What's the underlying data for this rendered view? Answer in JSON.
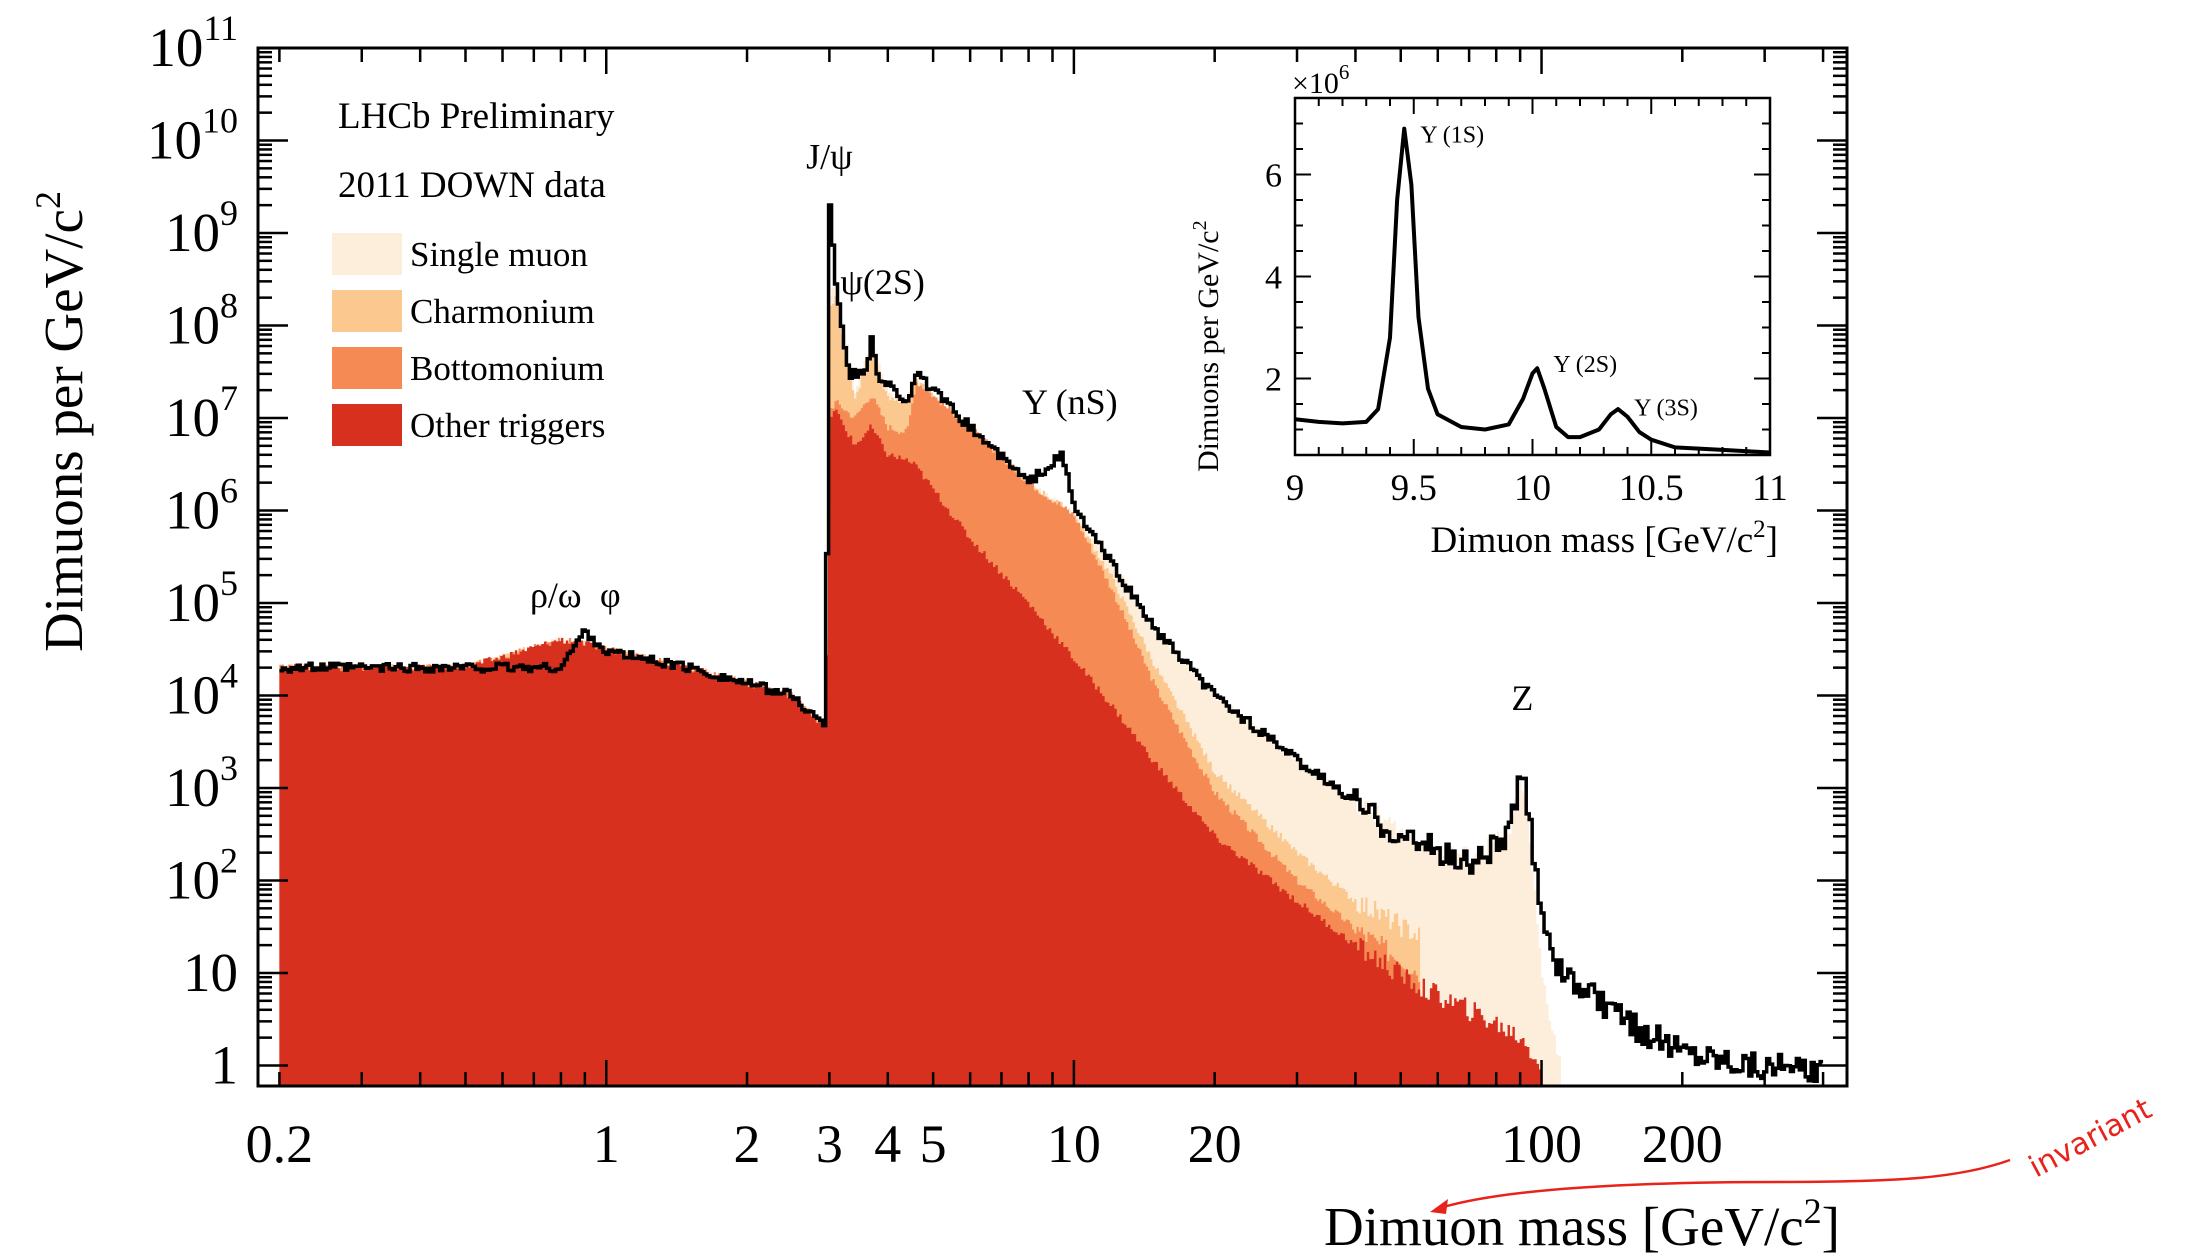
{
  "chart_data": [
    {
      "type": "area",
      "role": "main",
      "xscale": "log",
      "yscale": "log",
      "xlim": [
        0.18,
        450
      ],
      "ylim": [
        0.6,
        100000000000.0
      ],
      "xlabel": "Dimuon mass [GeV/c",
      "xlabel_sup": "2",
      "xlabel_tail": "]",
      "ylabel": "Dimuons per GeV/c",
      "ylabel_sup": "2",
      "xticks": [
        {
          "value": 0.2,
          "label": "0.2"
        },
        {
          "value": 1,
          "label": "1"
        },
        {
          "value": 2,
          "label": "2"
        },
        {
          "value": 3,
          "label": "3"
        },
        {
          "value": 4,
          "label": "4"
        },
        {
          "value": 5,
          "label": "5"
        },
        {
          "value": 10,
          "label": "10"
        },
        {
          "value": 20,
          "label": "20"
        },
        {
          "value": 100,
          "label": "100"
        },
        {
          "value": 200,
          "label": "200"
        }
      ],
      "yticks": [
        {
          "value": 1,
          "base": "1",
          "exp": ""
        },
        {
          "value": 10,
          "base": "10",
          "exp": ""
        },
        {
          "value": 100,
          "base": "10",
          "exp": "2"
        },
        {
          "value": 1000,
          "base": "10",
          "exp": "3"
        },
        {
          "value": 10000,
          "base": "10",
          "exp": "4"
        },
        {
          "value": 100000,
          "base": "10",
          "exp": "5"
        },
        {
          "value": 1000000,
          "base": "10",
          "exp": "6"
        },
        {
          "value": 10000000,
          "base": "10",
          "exp": "7"
        },
        {
          "value": 100000000,
          "base": "10",
          "exp": "8"
        },
        {
          "value": 1000000000,
          "base": "10",
          "exp": "9"
        },
        {
          "value": 10000000000,
          "base": "10",
          "exp": "10"
        },
        {
          "value": 100000000000,
          "base": "10",
          "exp": "11"
        }
      ],
      "text_lines": [
        "LHCb Preliminary",
        "2011 DOWN data"
      ],
      "legend": {
        "placement": "top-left",
        "entries": [
          {
            "name": "Single muon",
            "color": "#fdeedc"
          },
          {
            "name": "Charmonium",
            "color": "#fbc88f"
          },
          {
            "name": "Bottomonium",
            "color": "#f58a55"
          },
          {
            "name": "Other triggers",
            "color": "#d8301f"
          }
        ]
      },
      "annotations": [
        {
          "text": "ρ/ω",
          "x": 0.78,
          "y": 90000
        },
        {
          "text": "φ",
          "x": 1.02,
          "y": 90000
        },
        {
          "text": "J/ψ",
          "x": 3.0,
          "y": 5000000000.0
        },
        {
          "text": "ψ(2S)",
          "x": 3.9,
          "y": 220000000.0
        },
        {
          "text": "Υ (nS)",
          "x": 9.8,
          "y": 11000000.0
        },
        {
          "text": "Z",
          "x": 91,
          "y": 7000
        }
      ],
      "series": [
        {
          "name": "Single muon",
          "color": "#fdeedc",
          "x": [
            0.2,
            0.5,
            0.8,
            1.0,
            1.5,
            2.5,
            2.95,
            3.0,
            3.1,
            3.4,
            3.69,
            4.0,
            4.4,
            4.6,
            6,
            8,
            9.46,
            10,
            12,
            15,
            20,
            30,
            40,
            55,
            70,
            85,
            91,
            95,
            100,
            110
          ],
          "values": [
            20000,
            20000,
            40000,
            32000,
            20000,
            10000,
            4500,
            200000000.0,
            300000000.0,
            20000000.0,
            70000000.0,
            18000000.0,
            16000000.0,
            25000000.0,
            8000000.0,
            2000000.0,
            1100000.0,
            900000.0,
            300000.0,
            50000.0,
            10000.0,
            2000,
            700,
            250,
            180,
            300,
            1200,
            200,
            10,
            1
          ]
        },
        {
          "name": "Charmonium",
          "color": "#fbc88f",
          "x": [
            0.2,
            0.5,
            0.8,
            1.0,
            1.5,
            2.5,
            2.95,
            3.0,
            3.1,
            3.4,
            3.69,
            4.0,
            4.4,
            4.6,
            6,
            8,
            9.46,
            10,
            12,
            15,
            20,
            30,
            40,
            55
          ],
          "values": [
            20000,
            20000,
            40000,
            32000,
            20000,
            10000,
            4500,
            150000000.0,
            200000000.0,
            15000000.0,
            60000000.0,
            16000000.0,
            15000000.0,
            25000000.0,
            8000000.0,
            2000000.0,
            1100000.0,
            900000.0,
            200000.0,
            20000.0,
            1500,
            200,
            60,
            25
          ]
        },
        {
          "name": "Bottomonium",
          "color": "#f58a55",
          "x": [
            0.2,
            0.5,
            0.8,
            1.0,
            1.5,
            2.5,
            2.95,
            3.0,
            3.1,
            3.4,
            3.69,
            4.0,
            4.4,
            4.6,
            6,
            8,
            9.46,
            10,
            12,
            15,
            20,
            30,
            40,
            55
          ],
          "values": [
            20000,
            20000,
            40000,
            32000,
            20000,
            10000,
            4500,
            12000000.0,
            15000000.0,
            10000000.0,
            18000000.0,
            8000000.0,
            7000000.0,
            25000000.0,
            8000000.0,
            2000000.0,
            1100000.0,
            900000.0,
            150000.0,
            12000.0,
            900,
            100,
            30,
            10
          ]
        },
        {
          "name": "Other triggers",
          "color": "#d8301f",
          "x": [
            0.2,
            0.5,
            0.8,
            1.0,
            1.5,
            2.5,
            2.95,
            3.0,
            3.1,
            3.4,
            3.69,
            4.0,
            4.4,
            4.6,
            6,
            8,
            10,
            12,
            15,
            20,
            30,
            40,
            55,
            70,
            91,
            100
          ],
          "values": [
            20000,
            20000,
            40000,
            32000,
            20000,
            10000,
            4500,
            10000000.0,
            12000000.0,
            5000000.0,
            8000000.0,
            4000000.0,
            3500000.0,
            3000000.0,
            500000.0,
            100000.0,
            25000.0,
            8000,
            1800,
            300,
            60,
            20,
            7,
            4,
            2,
            1
          ]
        },
        {
          "name": "Total",
          "color": "#000000",
          "x": [
            0.2,
            0.5,
            0.8,
            0.9,
            1.0,
            1.5,
            2.5,
            2.95,
            3.0,
            3.1,
            3.3,
            3.6,
            3.69,
            3.8,
            4.4,
            4.6,
            6,
            8,
            9.46,
            10,
            15,
            20,
            30,
            40,
            50,
            70,
            85,
            91,
            95,
            100,
            110,
            150,
            200,
            300,
            400
          ],
          "values": [
            20000,
            20000,
            20000,
            50000,
            30000,
            20000,
            10000,
            4500,
            2500000000.0,
            300000000.0,
            30000000.0,
            30000000.0,
            80000000.0,
            30000000.0,
            15000000.0,
            30000000.0,
            8000000.0,
            2000000.0,
            4000000.0,
            1100000.0,
            50000.0,
            10000.0,
            2000,
            700,
            300,
            150,
            300,
            1500,
            300,
            50,
            10,
            3,
            1.5,
            1,
            0.8
          ]
        }
      ]
    },
    {
      "type": "line",
      "role": "inset",
      "xlim": [
        9,
        11
      ],
      "ylim": [
        0.5,
        7.5
      ],
      "xlabel": "Dimuon mass [GeV/c",
      "xlabel_sup": "2",
      "xlabel_tail": "]",
      "ylabel": "Dimuons per GeV/c",
      "ylabel_sup": "2",
      "y_multiplier": "×10",
      "y_multiplier_exp": "6",
      "xticks": [
        {
          "value": 9,
          "label": "9"
        },
        {
          "value": 9.5,
          "label": "9.5"
        },
        {
          "value": 10,
          "label": "10"
        },
        {
          "value": 10.5,
          "label": "10.5"
        },
        {
          "value": 11,
          "label": "11"
        }
      ],
      "yticks": [
        {
          "value": 2,
          "label": "2"
        },
        {
          "value": 4,
          "label": "4"
        },
        {
          "value": 6,
          "label": "6"
        }
      ],
      "annotations": [
        {
          "text": "Υ (1S)",
          "x": 9.46,
          "y": 6.9
        },
        {
          "text": "Υ (2S)",
          "x": 10.02,
          "y": 2.4
        },
        {
          "text": "Υ (3S)",
          "x": 10.36,
          "y": 1.55
        }
      ],
      "series": [
        {
          "name": "",
          "color": "#000000",
          "x": [
            9.0,
            9.1,
            9.2,
            9.3,
            9.35,
            9.4,
            9.43,
            9.46,
            9.49,
            9.52,
            9.56,
            9.6,
            9.7,
            9.8,
            9.9,
            9.96,
            10.0,
            10.02,
            10.05,
            10.1,
            10.15,
            10.2,
            10.28,
            10.33,
            10.36,
            10.4,
            10.45,
            10.5,
            10.6,
            10.8,
            11.0
          ],
          "values": [
            1.2,
            1.15,
            1.12,
            1.15,
            1.4,
            2.8,
            5.5,
            6.9,
            5.8,
            3.2,
            1.8,
            1.3,
            1.05,
            1.0,
            1.1,
            1.6,
            2.1,
            2.2,
            1.8,
            1.05,
            0.85,
            0.85,
            1.0,
            1.3,
            1.4,
            1.25,
            0.95,
            0.8,
            0.65,
            0.6,
            0.55
          ]
        }
      ]
    }
  ],
  "handwritten_note": {
    "text": "invariant",
    "color": "#e8231b"
  }
}
